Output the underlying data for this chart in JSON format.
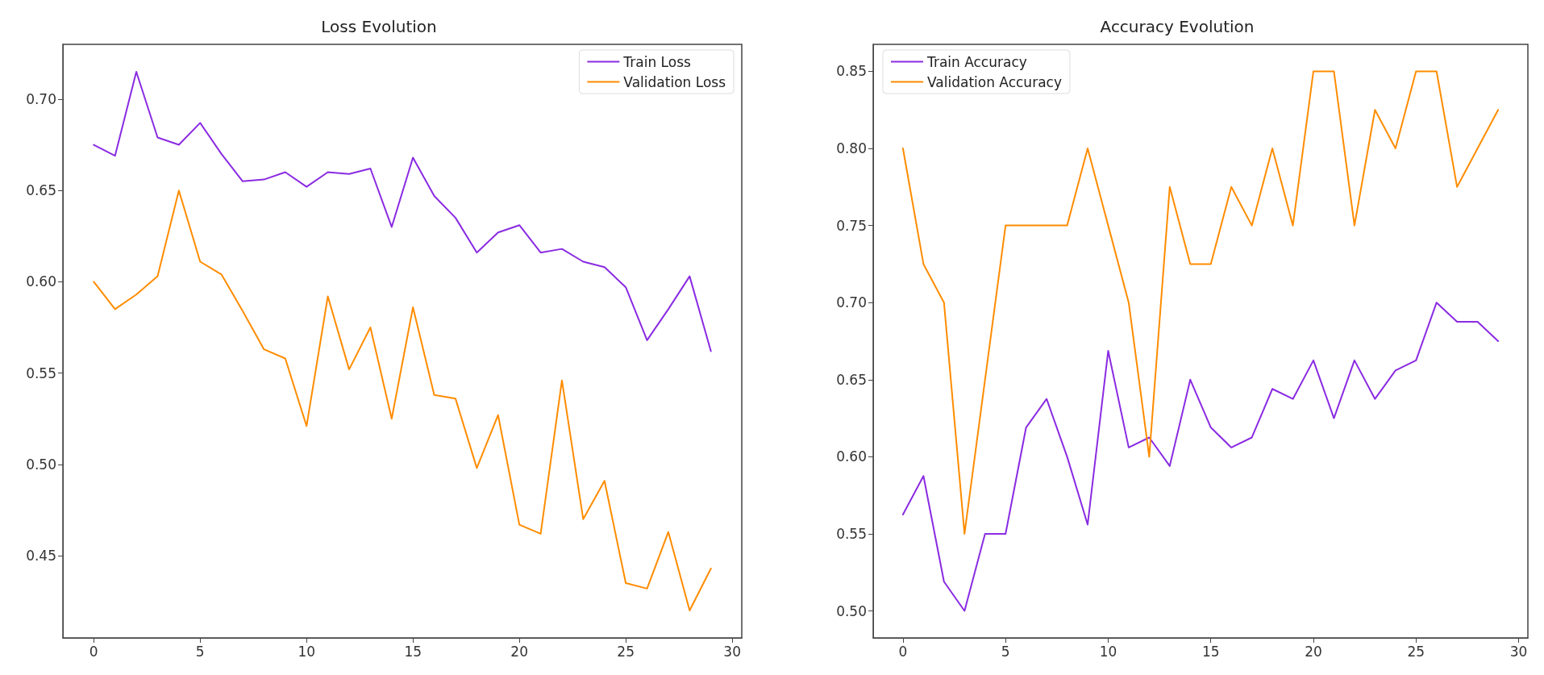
{
  "chart_data": [
    {
      "type": "line",
      "title": "Loss Evolution",
      "x": [
        0,
        1,
        2,
        3,
        4,
        5,
        6,
        7,
        8,
        9,
        10,
        11,
        12,
        13,
        14,
        15,
        16,
        17,
        18,
        19,
        20,
        21,
        22,
        23,
        24,
        25,
        26,
        27,
        28,
        29
      ],
      "series": [
        {
          "name": "Train Loss",
          "color": "#8a2be2",
          "values": [
            0.675,
            0.669,
            0.715,
            0.679,
            0.675,
            0.687,
            0.67,
            0.655,
            0.656,
            0.66,
            0.652,
            0.66,
            0.659,
            0.662,
            0.63,
            0.668,
            0.647,
            0.635,
            0.616,
            0.627,
            0.631,
            0.616,
            0.618,
            0.611,
            0.608,
            0.597,
            0.568,
            0.585,
            0.603,
            0.562
          ]
        },
        {
          "name": "Validation Loss",
          "color": "#ff8c00",
          "values": [
            0.6,
            0.585,
            0.593,
            0.603,
            0.65,
            0.611,
            0.604,
            0.584,
            0.563,
            0.558,
            0.521,
            0.592,
            0.552,
            0.575,
            0.525,
            0.586,
            0.538,
            0.536,
            0.498,
            0.527,
            0.467,
            0.462,
            0.546,
            0.47,
            0.491,
            0.435,
            0.432,
            0.463,
            0.42,
            0.443
          ]
        }
      ],
      "xlim": [
        -1.45,
        30.45
      ],
      "xticks": [
        0,
        5,
        10,
        15,
        20,
        25,
        30
      ],
      "ylim": [
        0.405,
        0.73
      ],
      "yticks": [
        {
          "value": 0.45,
          "label": "0.45"
        },
        {
          "value": 0.5,
          "label": "0.50"
        },
        {
          "value": 0.55,
          "label": "0.55"
        },
        {
          "value": 0.6,
          "label": "0.60"
        },
        {
          "value": 0.65,
          "label": "0.65"
        },
        {
          "value": 0.7,
          "label": "0.70"
        }
      ],
      "grid": false,
      "legend": "top right",
      "marker": "none",
      "line_style": "solid"
    },
    {
      "type": "line",
      "title": "Accuracy Evolution",
      "x": [
        0,
        1,
        2,
        3,
        4,
        5,
        6,
        7,
        8,
        9,
        10,
        11,
        12,
        13,
        14,
        15,
        16,
        17,
        18,
        19,
        20,
        21,
        22,
        23,
        24,
        25,
        26,
        27,
        28,
        29
      ],
      "series": [
        {
          "name": "Train Accuracy",
          "color": "#8a2be2",
          "values": [
            0.5625,
            0.5875,
            0.519,
            0.5,
            0.55,
            0.55,
            0.619,
            0.6375,
            0.6,
            0.556,
            0.6687,
            0.606,
            0.6125,
            0.594,
            0.65,
            0.619,
            0.606,
            0.6125,
            0.644,
            0.6375,
            0.6625,
            0.625,
            0.6625,
            0.6375,
            0.656,
            0.6625,
            0.7,
            0.6875,
            0.6875,
            0.675
          ]
        },
        {
          "name": "Validation Accuracy",
          "color": "#ff8c00",
          "values": [
            0.8,
            0.725,
            0.7,
            0.55,
            0.65,
            0.75,
            0.75,
            0.75,
            0.75,
            0.8,
            0.75,
            0.7,
            0.6,
            0.775,
            0.725,
            0.725,
            0.775,
            0.75,
            0.8,
            0.75,
            0.85,
            0.85,
            0.75,
            0.825,
            0.8,
            0.85,
            0.85,
            0.775,
            0.8,
            0.825
          ]
        }
      ],
      "xlim": [
        -1.45,
        30.45
      ],
      "xticks": [
        0,
        5,
        10,
        15,
        20,
        25,
        30
      ],
      "ylim": [
        0.4825,
        0.8675
      ],
      "yticks": [
        {
          "value": 0.5,
          "label": "0.50"
        },
        {
          "value": 0.55,
          "label": "0.55"
        },
        {
          "value": 0.6,
          "label": "0.60"
        },
        {
          "value": 0.65,
          "label": "0.65"
        },
        {
          "value": 0.7,
          "label": "0.70"
        },
        {
          "value": 0.75,
          "label": "0.75"
        },
        {
          "value": 0.8,
          "label": "0.80"
        },
        {
          "value": 0.85,
          "label": "0.85"
        }
      ],
      "grid": false,
      "legend": "top left",
      "marker": "none",
      "line_style": "solid"
    }
  ]
}
